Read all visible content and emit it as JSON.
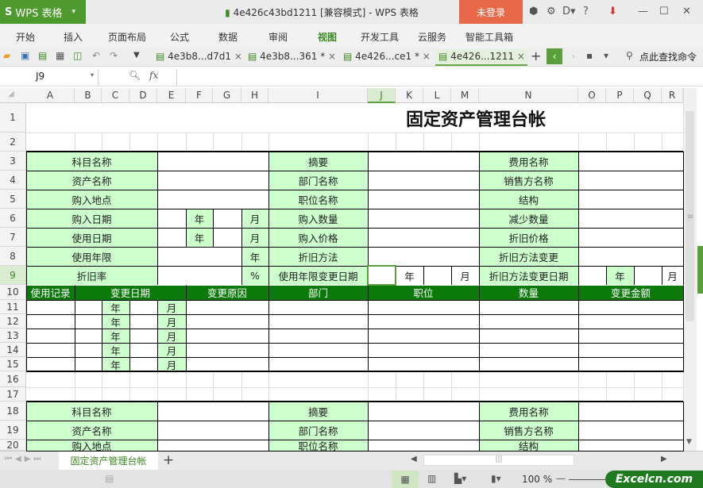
{
  "app": {
    "name": "WPS 表格",
    "doc_title": "4e426c43bd1211 [兼容模式] - WPS 表格",
    "login": "未登录",
    "help": "?"
  },
  "menu": [
    {
      "label": "开始"
    },
    {
      "label": "插入"
    },
    {
      "label": "页面布局"
    },
    {
      "label": "公式"
    },
    {
      "label": "数据"
    },
    {
      "label": "审阅"
    },
    {
      "label": "视图",
      "active": true
    },
    {
      "label": "开发工具"
    },
    {
      "label": "云服务"
    },
    {
      "label": "智能工具箱"
    }
  ],
  "doc_tabs": [
    {
      "label": "4e3b8...d7d1"
    },
    {
      "label": "4e3b8...361 *"
    },
    {
      "label": "4e426...ce1 *"
    },
    {
      "label": "4e426...1211",
      "active": true
    }
  ],
  "search_cmd": "点此查找命令",
  "formula": {
    "cell_ref": "J9",
    "fx": "fx",
    "value": ""
  },
  "columns": [
    "A",
    "B",
    "C",
    "D",
    "E",
    "F",
    "G",
    "H",
    "I",
    "J",
    "K",
    "L",
    "M",
    "N",
    "O",
    "P",
    "Q",
    "R"
  ],
  "selected_col": "J",
  "selected_row": "9",
  "rows": [
    "1",
    "2",
    "3",
    "4",
    "5",
    "6",
    "7",
    "8",
    "9",
    "10",
    "11",
    "12",
    "13",
    "14",
    "15",
    "16",
    "17",
    "18",
    "19",
    "20"
  ],
  "sheet_title": "固定资产管理台帐",
  "cells": [
    {
      "r": "3",
      "c": "A:D",
      "t": "科目名称",
      "f": "green"
    },
    {
      "r": "3",
      "c": "E:H",
      "t": "",
      "f": "white"
    },
    {
      "r": "3",
      "c": "I",
      "t": "摘要",
      "f": "green"
    },
    {
      "r": "3",
      "c": "J:M",
      "t": "",
      "f": "white"
    },
    {
      "r": "3",
      "c": "N",
      "t": "费用名称",
      "f": "green"
    },
    {
      "r": "3",
      "c": "O:R",
      "t": "",
      "f": "white"
    },
    {
      "r": "4",
      "c": "A:D",
      "t": "资产名称",
      "f": "green"
    },
    {
      "r": "4",
      "c": "E:H",
      "t": "",
      "f": "white"
    },
    {
      "r": "4",
      "c": "I",
      "t": "部门名称",
      "f": "green"
    },
    {
      "r": "4",
      "c": "J:M",
      "t": "",
      "f": "white"
    },
    {
      "r": "4",
      "c": "N",
      "t": "销售方名称",
      "f": "green"
    },
    {
      "r": "4",
      "c": "O:R",
      "t": "",
      "f": "white"
    },
    {
      "r": "5",
      "c": "A:D",
      "t": "购入地点",
      "f": "green"
    },
    {
      "r": "5",
      "c": "E:H",
      "t": "",
      "f": "white"
    },
    {
      "r": "5",
      "c": "I",
      "t": "职位名称",
      "f": "green"
    },
    {
      "r": "5",
      "c": "J:M",
      "t": "",
      "f": "white"
    },
    {
      "r": "5",
      "c": "N",
      "t": "结构",
      "f": "green"
    },
    {
      "r": "5",
      "c": "O:R",
      "t": "",
      "f": "white"
    },
    {
      "r": "6",
      "c": "A:D",
      "t": "购入日期",
      "f": "green"
    },
    {
      "r": "6",
      "c": "E",
      "t": "",
      "f": "white"
    },
    {
      "r": "6",
      "c": "F",
      "t": "年",
      "f": "green"
    },
    {
      "r": "6",
      "c": "G",
      "t": "",
      "f": "white"
    },
    {
      "r": "6",
      "c": "H",
      "t": "月",
      "f": "green"
    },
    {
      "r": "6",
      "c": "I",
      "t": "购入数量",
      "f": "green"
    },
    {
      "r": "6",
      "c": "J:M",
      "t": "",
      "f": "white"
    },
    {
      "r": "6",
      "c": "N",
      "t": "减少数量",
      "f": "green"
    },
    {
      "r": "6",
      "c": "O:R",
      "t": "",
      "f": "white"
    },
    {
      "r": "7",
      "c": "A:D",
      "t": "使用日期",
      "f": "green"
    },
    {
      "r": "7",
      "c": "E",
      "t": "",
      "f": "white"
    },
    {
      "r": "7",
      "c": "F",
      "t": "年",
      "f": "green"
    },
    {
      "r": "7",
      "c": "G",
      "t": "",
      "f": "white"
    },
    {
      "r": "7",
      "c": "H",
      "t": "月",
      "f": "green"
    },
    {
      "r": "7",
      "c": "I",
      "t": "购入价格",
      "f": "green"
    },
    {
      "r": "7",
      "c": "J:M",
      "t": "",
      "f": "white"
    },
    {
      "r": "7",
      "c": "N",
      "t": "折旧价格",
      "f": "green"
    },
    {
      "r": "7",
      "c": "O:R",
      "t": "",
      "f": "white"
    },
    {
      "r": "8",
      "c": "A:D",
      "t": "使用年限",
      "f": "green"
    },
    {
      "r": "8",
      "c": "E:G",
      "t": "",
      "f": "white"
    },
    {
      "r": "8",
      "c": "H",
      "t": "年",
      "f": "green"
    },
    {
      "r": "8",
      "c": "I",
      "t": "折旧方法",
      "f": "green"
    },
    {
      "r": "8",
      "c": "J:M",
      "t": "",
      "f": "white"
    },
    {
      "r": "8",
      "c": "N",
      "t": "折旧方法变更",
      "f": "green"
    },
    {
      "r": "8",
      "c": "O:R",
      "t": "",
      "f": "white"
    },
    {
      "r": "9",
      "c": "A:D",
      "t": "折旧率",
      "f": "green"
    },
    {
      "r": "9",
      "c": "E:G",
      "t": "",
      "f": "white"
    },
    {
      "r": "9",
      "c": "H",
      "t": "%",
      "f": "green"
    },
    {
      "r": "9",
      "c": "I",
      "t": "使用年限变更日期",
      "f": "green"
    },
    {
      "r": "9",
      "c": "J",
      "t": "",
      "f": "white"
    },
    {
      "r": "9",
      "c": "K",
      "t": "年",
      "f": "white"
    },
    {
      "r": "9",
      "c": "L",
      "t": "",
      "f": "white"
    },
    {
      "r": "9",
      "c": "M",
      "t": "月",
      "f": "white"
    },
    {
      "r": "9",
      "c": "N",
      "t": "折旧方法变更日期",
      "f": "green"
    },
    {
      "r": "9",
      "c": "O",
      "t": "",
      "f": "white"
    },
    {
      "r": "9",
      "c": "P",
      "t": "年",
      "f": "green"
    },
    {
      "r": "9",
      "c": "Q",
      "t": "",
      "f": "white"
    },
    {
      "r": "9",
      "c": "R",
      "t": "月",
      "f": "white"
    },
    {
      "r": "10",
      "c": "A",
      "t": "使用记录",
      "f": "dark"
    },
    {
      "r": "10",
      "c": "B:E",
      "t": "变更日期",
      "f": "dark"
    },
    {
      "r": "10",
      "c": "F:H",
      "t": "变更原因",
      "f": "dark"
    },
    {
      "r": "10",
      "c": "I",
      "t": "部门",
      "f": "dark"
    },
    {
      "r": "10",
      "c": "J:M",
      "t": "职位",
      "f": "dark"
    },
    {
      "r": "10",
      "c": "N",
      "t": "数量",
      "f": "dark"
    },
    {
      "r": "10",
      "c": "O:R",
      "t": "变更金额",
      "f": "dark"
    },
    {
      "r": "11",
      "c": "C",
      "t": "年",
      "f": "green"
    },
    {
      "r": "11",
      "c": "E",
      "t": "月",
      "f": "green"
    },
    {
      "r": "12",
      "c": "C",
      "t": "年",
      "f": "green"
    },
    {
      "r": "12",
      "c": "E",
      "t": "月",
      "f": "green"
    },
    {
      "r": "13",
      "c": "C",
      "t": "年",
      "f": "green"
    },
    {
      "r": "13",
      "c": "E",
      "t": "月",
      "f": "green"
    },
    {
      "r": "14",
      "c": "C",
      "t": "年",
      "f": "green"
    },
    {
      "r": "14",
      "c": "E",
      "t": "月",
      "f": "green"
    },
    {
      "r": "15",
      "c": "C",
      "t": "年",
      "f": "green"
    },
    {
      "r": "15",
      "c": "E",
      "t": "月",
      "f": "green"
    },
    {
      "r": "18",
      "c": "A:D",
      "t": "科目名称",
      "f": "green"
    },
    {
      "r": "18",
      "c": "E:H",
      "t": "",
      "f": "white"
    },
    {
      "r": "18",
      "c": "I",
      "t": "摘要",
      "f": "green"
    },
    {
      "r": "18",
      "c": "J:M",
      "t": "",
      "f": "white"
    },
    {
      "r": "18",
      "c": "N",
      "t": "费用名称",
      "f": "green"
    },
    {
      "r": "18",
      "c": "O:R",
      "t": "",
      "f": "white"
    },
    {
      "r": "19",
      "c": "A:D",
      "t": "资产名称",
      "f": "green"
    },
    {
      "r": "19",
      "c": "E:H",
      "t": "",
      "f": "white"
    },
    {
      "r": "19",
      "c": "I",
      "t": "部门名称",
      "f": "green"
    },
    {
      "r": "19",
      "c": "J:M",
      "t": "",
      "f": "white"
    },
    {
      "r": "19",
      "c": "N",
      "t": "销售方名称",
      "f": "green"
    },
    {
      "r": "19",
      "c": "O:R",
      "t": "",
      "f": "white"
    },
    {
      "r": "20",
      "c": "A:D",
      "t": "购入地点",
      "f": "green"
    },
    {
      "r": "20",
      "c": "E:H",
      "t": "",
      "f": "white"
    },
    {
      "r": "20",
      "c": "I",
      "t": "职位名称",
      "f": "green"
    },
    {
      "r": "20",
      "c": "J:M",
      "t": "",
      "f": "white"
    },
    {
      "r": "20",
      "c": "N",
      "t": "结构",
      "f": "green"
    },
    {
      "r": "20",
      "c": "O:R",
      "t": "",
      "f": "white"
    }
  ],
  "sheet_tabs": [
    {
      "label": "固定资产管理台帐",
      "active": true
    }
  ],
  "status": {
    "zoom": "100 %",
    "watermark": "Excelcn.com"
  },
  "colors": {
    "accent": "#4e9a2e",
    "label_fill": "#ccffcc",
    "header_fill": "#0b7a0b",
    "login": "#e8694a"
  }
}
